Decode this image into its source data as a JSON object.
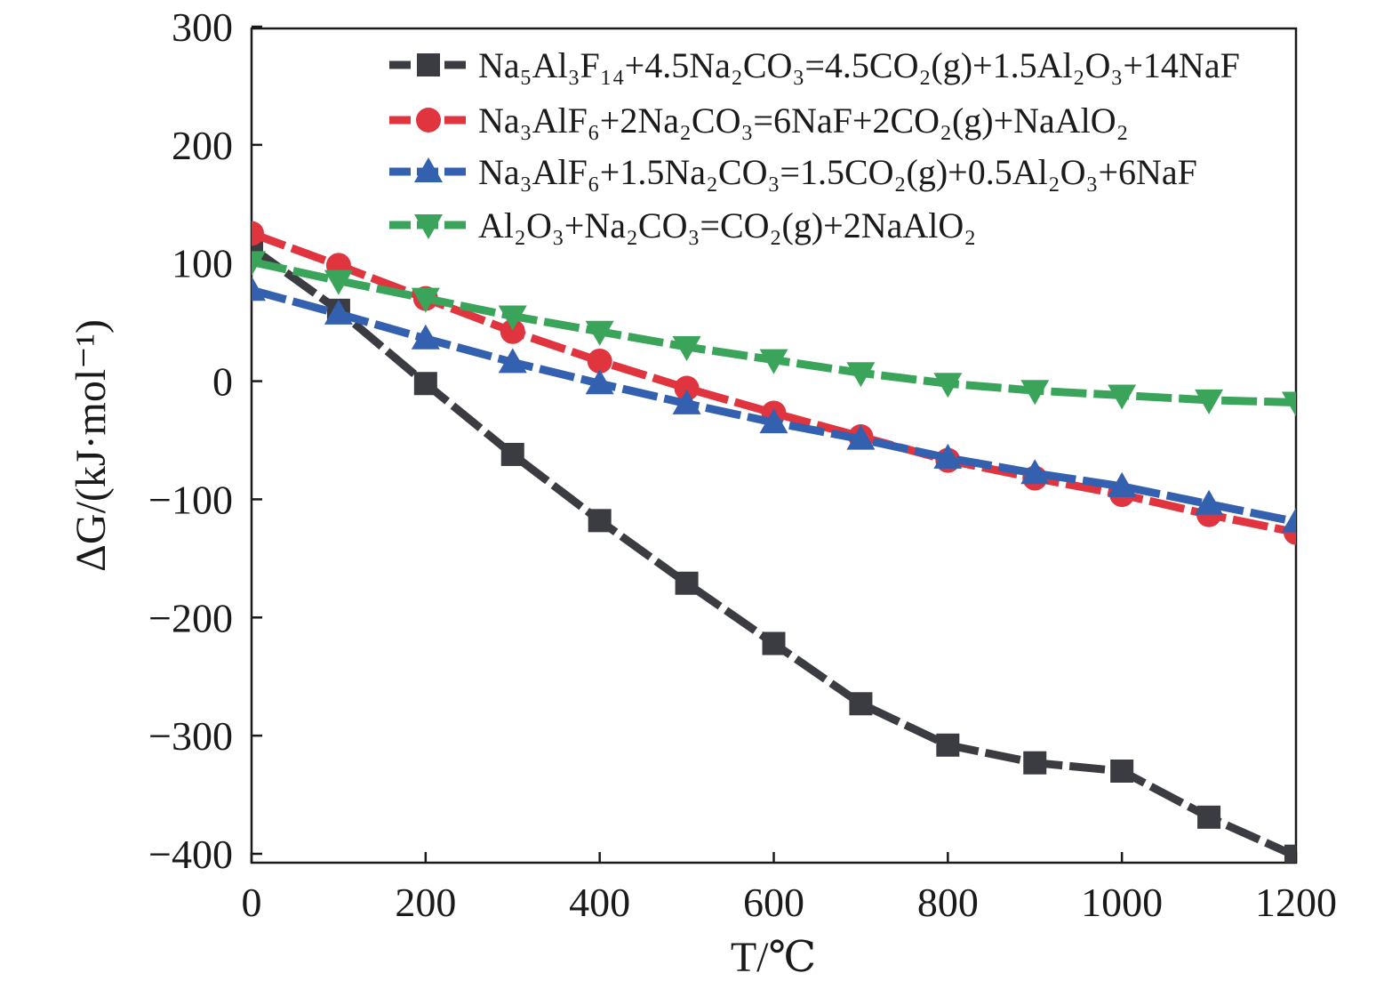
{
  "chart_data": {
    "type": "line",
    "x": [
      0,
      100,
      200,
      300,
      400,
      500,
      600,
      700,
      800,
      900,
      1000,
      1100,
      1200
    ],
    "xlim": [
      0,
      1200
    ],
    "ylim": [
      -400,
      300
    ],
    "x_ticks": [
      0,
      200,
      400,
      600,
      800,
      1000,
      1200
    ],
    "y_ticks": [
      300,
      200,
      100,
      0,
      -100,
      -200,
      -300,
      -400
    ],
    "x_tick_labels": [
      "0",
      "200",
      "400",
      "600",
      "800",
      "1000",
      "1200"
    ],
    "y_tick_labels": [
      "300",
      "200",
      "100",
      "0",
      "−100",
      "−200",
      "−300",
      "−400"
    ],
    "xlabel": "T/℃",
    "ylabel": "ΔG/(kJ·mol⁻¹)",
    "legend_position": "top-right",
    "grid": false,
    "series": [
      {
        "name": "Na₅Al₃F₁₄+4.5Na₂CO₃=4.5CO₂(g)+1.5Al₂O₃+14NaF",
        "marker": "square",
        "color": "#3a3c42",
        "values": [
          113,
          60,
          -2,
          -62,
          -118,
          -171,
          -222,
          -273,
          -308,
          -323,
          -330,
          -369,
          -402
        ]
      },
      {
        "name": "Na₃AlF₆+2Na₂CO₃=6NaF+2CO₂(g)+NaAlO₂",
        "marker": "circle",
        "color": "#e0343f",
        "values": [
          125,
          98,
          70,
          42,
          17,
          -6,
          -27,
          -47,
          -67,
          -82,
          -96,
          -113,
          -128
        ]
      },
      {
        "name": "Na₃AlF₆+1.5Na₂CO₃=1.5CO₂(g)+0.5Al₂O₃+6NaF",
        "marker": "triangle-up",
        "color": "#3460b0",
        "values": [
          77,
          57,
          36,
          16,
          -2,
          -19,
          -35,
          -49,
          -65,
          -78,
          -89,
          -104,
          -119
        ]
      },
      {
        "name": "Al₂O₃+Na₂CO₃=CO₂(g)+2NaAlO₂",
        "marker": "triangle-down",
        "color": "#3aa55a",
        "values": [
          101,
          85,
          70,
          55,
          42,
          29,
          18,
          7,
          -2,
          -8,
          -12,
          -16,
          -18
        ]
      }
    ]
  }
}
